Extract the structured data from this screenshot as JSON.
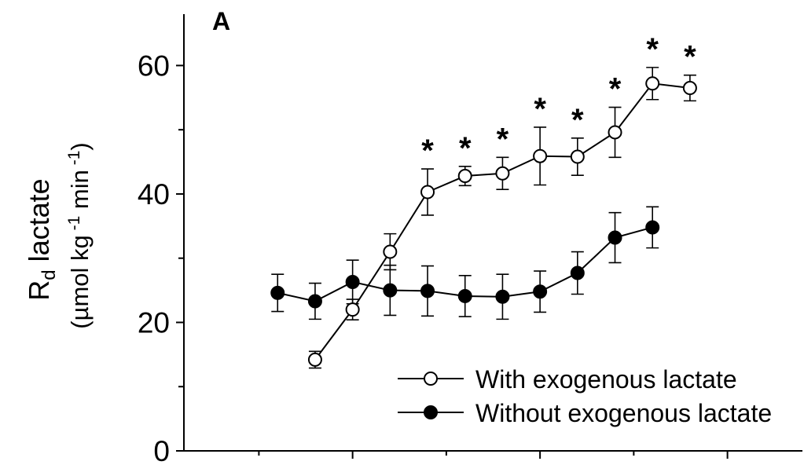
{
  "chart_data": {
    "type": "line",
    "panel_label": "A",
    "ylabel_main": "R",
    "ylabel_sub": "d",
    "ylabel_rest": " lactate",
    "ylabel_unit": {
      "p1": "(µmol kg",
      "sup1": " -1",
      "p2": " min",
      "sup2": " -1",
      "p3": ")"
    },
    "ylim": [
      0,
      68
    ],
    "yticks": [
      0,
      20,
      40,
      60
    ],
    "ytick_labels": [
      "0",
      "20",
      "40",
      "60"
    ],
    "y_minor_ticks": [
      10,
      30,
      50
    ],
    "xlim": [
      0,
      16.5
    ],
    "x_major_ticks": [
      4.5,
      9.5,
      14.5
    ],
    "x_minor_ticks": [
      2,
      7,
      12
    ],
    "grid": false,
    "legend_position": "bottom-right",
    "significance_marker": "*",
    "series": [
      {
        "name": "With exogenous lactate",
        "marker": "open-circle",
        "x": [
          3.5,
          4.5,
          5.5,
          6.5,
          7.5,
          8.5,
          9.5,
          10.5,
          11.5,
          12.5,
          13.5
        ],
        "y": [
          14.2,
          22.0,
          31.0,
          40.3,
          42.8,
          43.2,
          45.9,
          45.8,
          49.6,
          57.2,
          56.5
        ],
        "err": [
          1.3,
          1.6,
          2.8,
          3.6,
          1.5,
          2.5,
          4.5,
          2.9,
          3.9,
          2.5,
          2.0
        ],
        "significant": [
          false,
          false,
          false,
          true,
          true,
          true,
          true,
          true,
          true,
          true,
          true
        ]
      },
      {
        "name": "Without exogenous lactate",
        "marker": "filled-circle",
        "x": [
          2.5,
          3.5,
          4.5,
          5.5,
          6.5,
          7.5,
          8.5,
          9.5,
          10.5,
          11.5,
          12.5
        ],
        "y": [
          24.6,
          23.3,
          26.3,
          25.0,
          24.9,
          24.1,
          24.0,
          24.8,
          27.7,
          33.2,
          34.8
        ],
        "err": [
          2.9,
          2.8,
          3.4,
          3.9,
          3.9,
          3.2,
          3.5,
          3.2,
          3.3,
          3.9,
          3.2
        ]
      }
    ]
  }
}
